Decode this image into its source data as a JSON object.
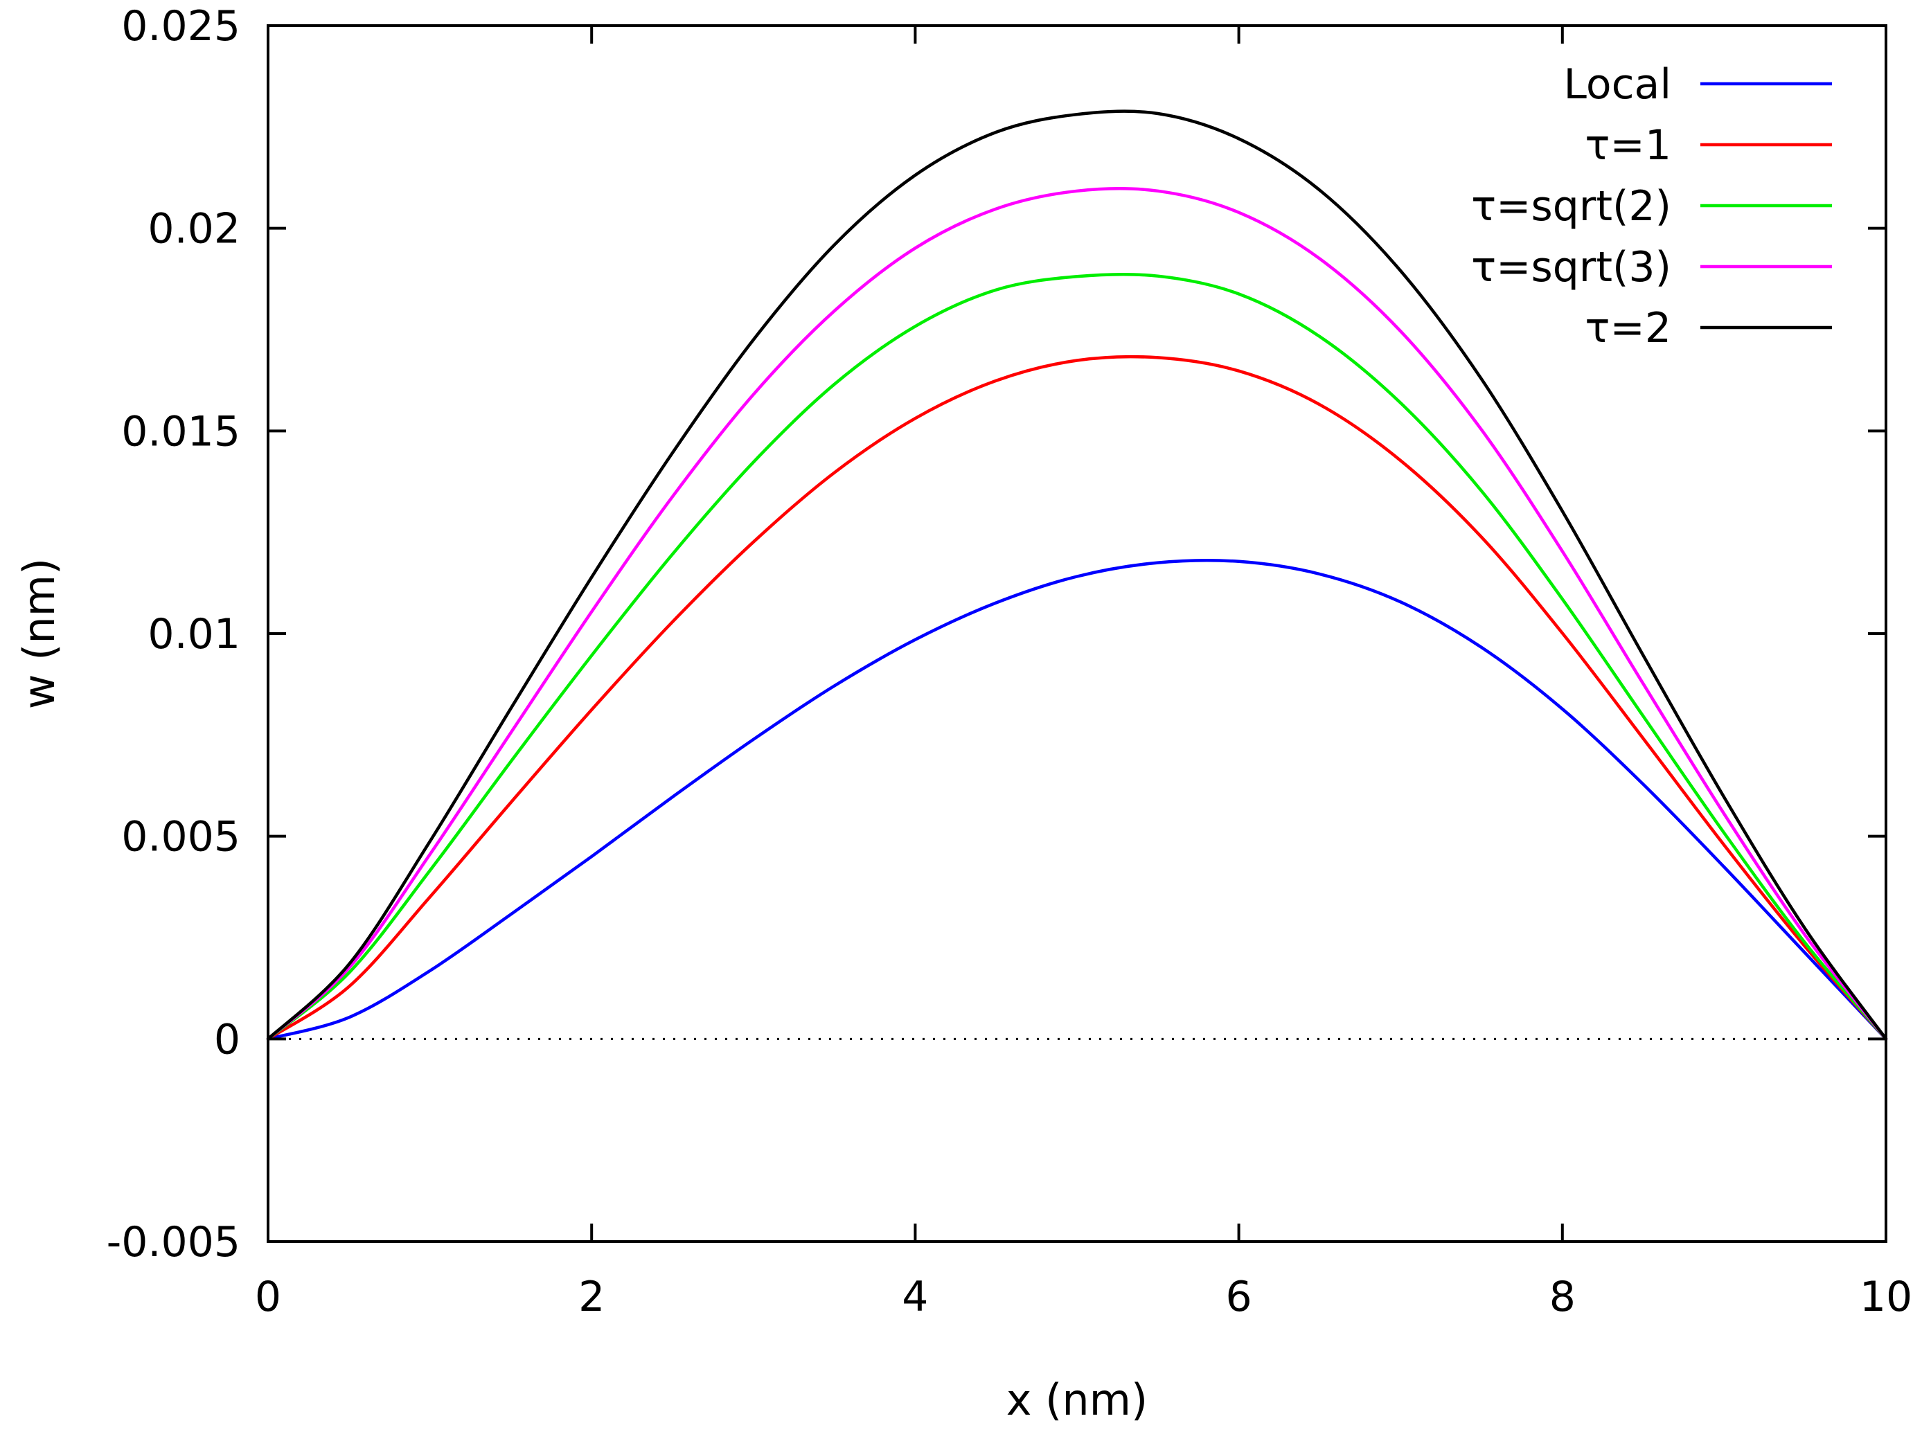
{
  "chart_data": {
    "type": "line",
    "title": "",
    "xlabel": "x (nm)",
    "ylabel": "w (nm)",
    "xlim": [
      0,
      10
    ],
    "ylim": [
      -0.005,
      0.025
    ],
    "xticks": [
      0,
      2,
      4,
      6,
      8,
      10
    ],
    "xtick_labels": [
      "0",
      "2",
      "4",
      "6",
      "8",
      "10"
    ],
    "yticks": [
      -0.005,
      0,
      0.005,
      0.01,
      0.015,
      0.02,
      0.025
    ],
    "ytick_labels": [
      "-0.005",
      "0",
      "0.005",
      "0.01",
      "0.015",
      "0.02",
      "0.025"
    ],
    "grid": false,
    "zero_line": {
      "y": 0,
      "style": "dotted",
      "color": "#000000"
    },
    "legend": {
      "position": "top-right"
    },
    "x": [
      0,
      0.5,
      1,
      1.5,
      2,
      2.5,
      3,
      3.5,
      4,
      4.5,
      5,
      5.5,
      6,
      6.5,
      7,
      7.5,
      8,
      8.5,
      9,
      9.5,
      10
    ],
    "series": [
      {
        "name": "Local",
        "color": "#0000ff",
        "values": [
          0,
          0.00053,
          0.00168,
          0.00307,
          0.0045,
          0.00597,
          0.00739,
          0.00871,
          0.00985,
          0.01076,
          0.01141,
          0.01175,
          0.01178,
          0.01147,
          0.01078,
          0.00966,
          0.00814,
          0.00628,
          0.00424,
          0.00212,
          0
        ]
      },
      {
        "name": "τ=1",
        "color": "#ff0000",
        "values": [
          0,
          0.00129,
          0.0035,
          0.00583,
          0.00812,
          0.01029,
          0.01226,
          0.01397,
          0.01531,
          0.01624,
          0.01674,
          0.01681,
          0.01648,
          0.01565,
          0.01427,
          0.01238,
          0.01001,
          0.00741,
          0.00478,
          0.00228,
          0
        ]
      },
      {
        "name": "τ=sqrt(2)",
        "color": "#00ee00",
        "values": [
          0,
          0.00163,
          0.00415,
          0.00684,
          0.00946,
          0.01196,
          0.01423,
          0.01615,
          0.01758,
          0.01848,
          0.01881,
          0.01882,
          0.01838,
          0.01733,
          0.01569,
          0.01352,
          0.01085,
          0.00796,
          0.00508,
          0.00237,
          0
        ]
      },
      {
        "name": "τ=sqrt(3)",
        "color": "#ff00ff",
        "values": [
          0,
          0.00175,
          0.00455,
          0.00755,
          0.01054,
          0.01338,
          0.0159,
          0.01796,
          0.01951,
          0.02048,
          0.02092,
          0.02092,
          0.02039,
          0.01925,
          0.01746,
          0.01503,
          0.01203,
          0.00876,
          0.00555,
          0.00256,
          0
        ]
      },
      {
        "name": "τ=2",
        "color": "#000000",
        "values": [
          0,
          0.00184,
          0.00487,
          0.00815,
          0.01139,
          0.01446,
          0.01725,
          0.01959,
          0.02131,
          0.02237,
          0.02281,
          0.02283,
          0.02221,
          0.02094,
          0.01895,
          0.01628,
          0.01302,
          0.00946,
          0.00596,
          0.00272,
          0
        ]
      }
    ]
  }
}
